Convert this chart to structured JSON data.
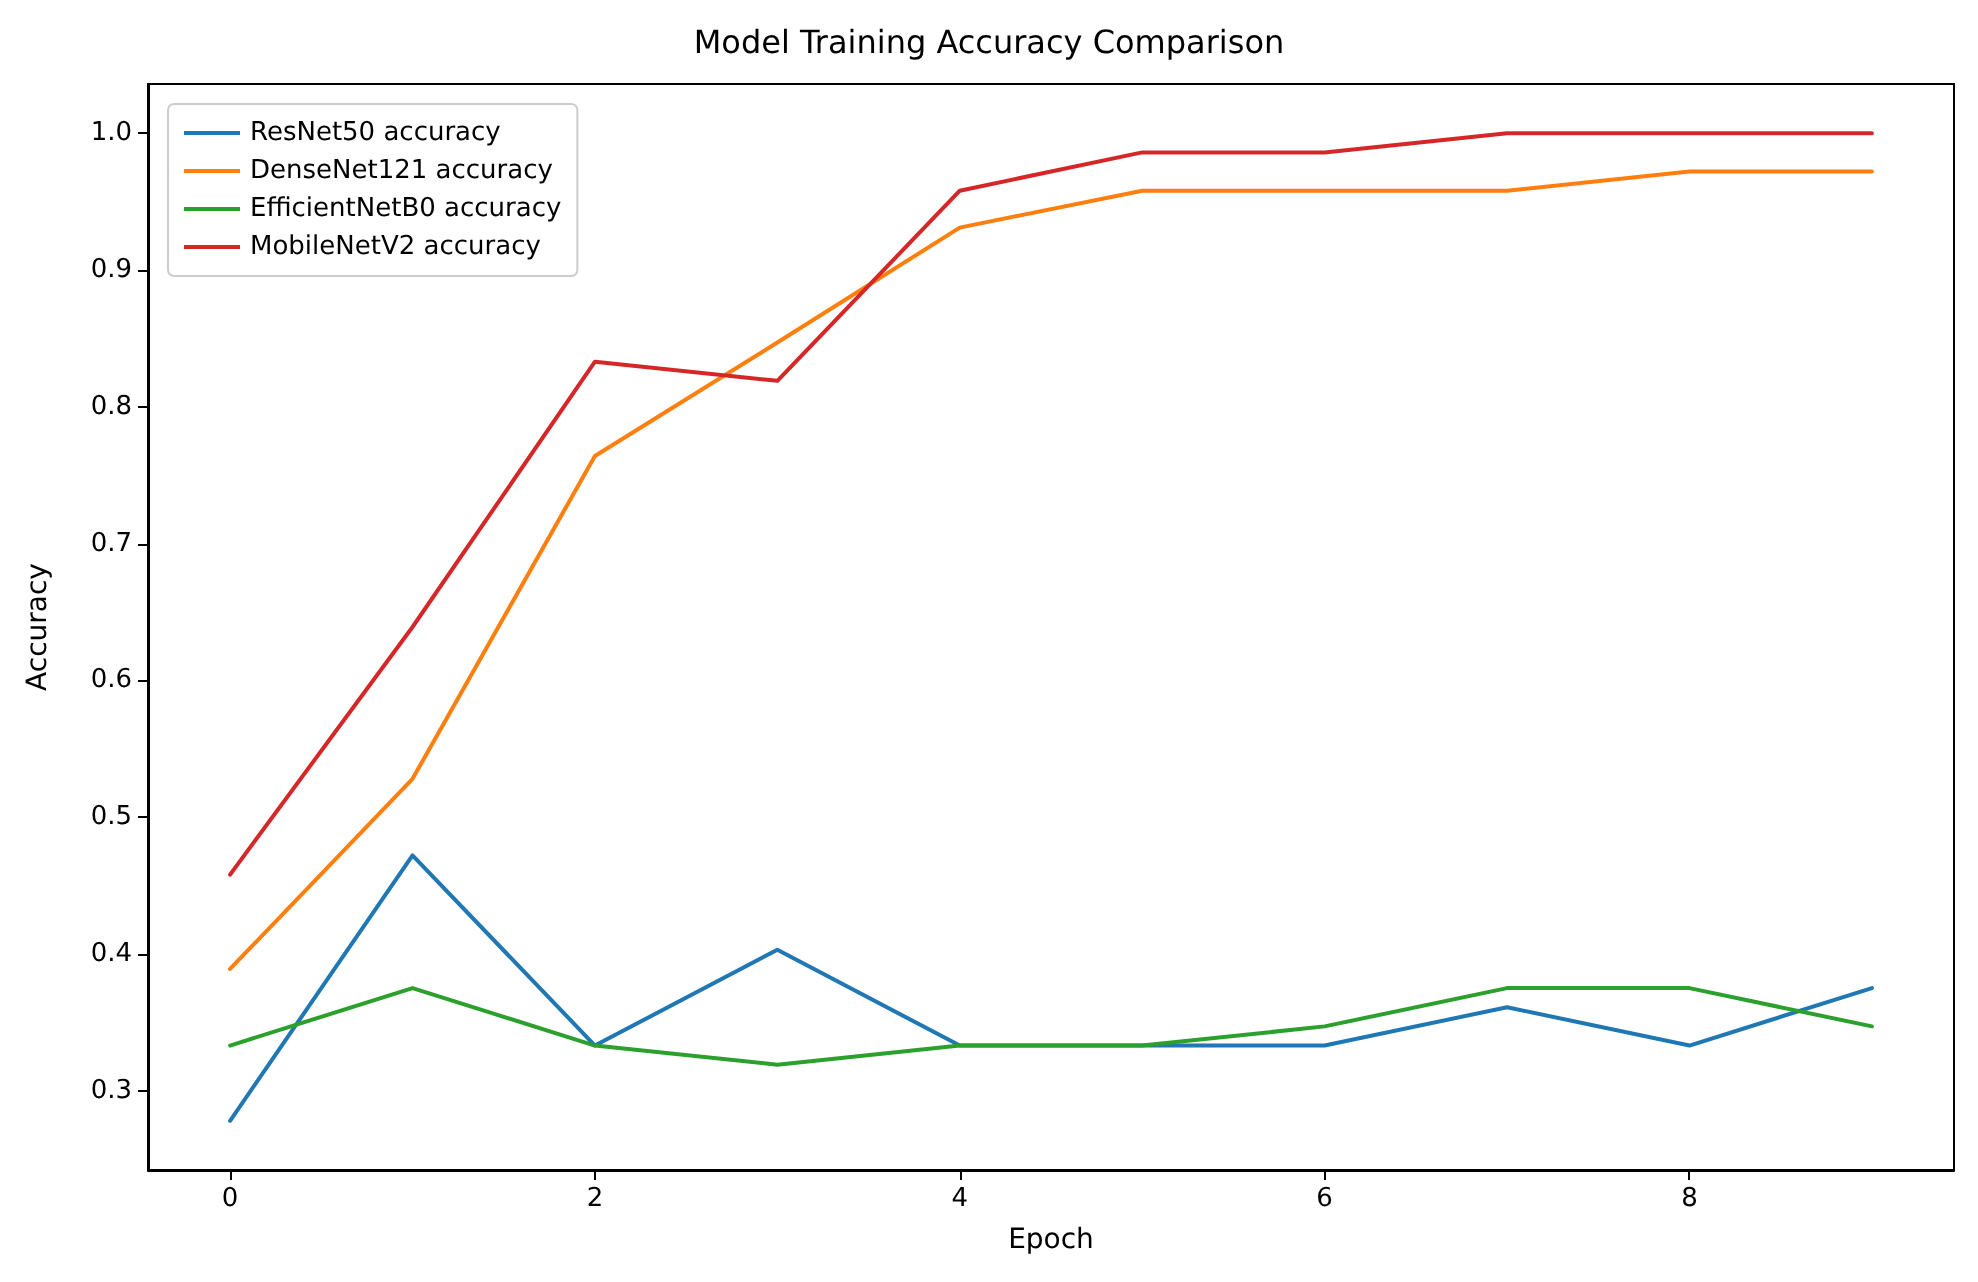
{
  "chart_data": {
    "type": "line",
    "title": "Model Training Accuracy Comparison",
    "xlabel": "Epoch",
    "ylabel": "Accuracy",
    "x": [
      0,
      1,
      2,
      3,
      4,
      5,
      6,
      7,
      8,
      9
    ],
    "series": [
      {
        "name": "ResNet50 accuracy",
        "color": "#1f77b4",
        "values": [
          0.278,
          0.472,
          0.333,
          0.403,
          0.333,
          0.333,
          0.333,
          0.361,
          0.333,
          0.375
        ]
      },
      {
        "name": "DenseNet121 accuracy",
        "color": "#ff7f0e",
        "values": [
          0.389,
          0.528,
          0.764,
          0.847,
          0.931,
          0.958,
          0.958,
          0.958,
          0.972,
          0.972
        ]
      },
      {
        "name": "EfficientNetB0 accuracy",
        "color": "#2ca02c",
        "values": [
          0.333,
          0.375,
          0.333,
          0.319,
          0.333,
          0.333,
          0.347,
          0.375,
          0.375,
          0.347
        ]
      },
      {
        "name": "MobileNetV2 accuracy",
        "color": "#d62728",
        "values": [
          0.458,
          0.639,
          0.833,
          0.819,
          0.958,
          0.986,
          0.986,
          1.0,
          1.0,
          1.0
        ]
      }
    ],
    "xlim": [
      -0.45,
      9.45
    ],
    "xticks": [
      0,
      2,
      4,
      6,
      8
    ],
    "ylim": [
      0.242,
      1.036
    ],
    "yticks": [
      0.3,
      0.4,
      0.5,
      0.6,
      0.7,
      0.8,
      0.9,
      {
        "value": 1.0,
        "label": "1.0"
      }
    ],
    "legend": "top left",
    "line_style": "solid"
  }
}
